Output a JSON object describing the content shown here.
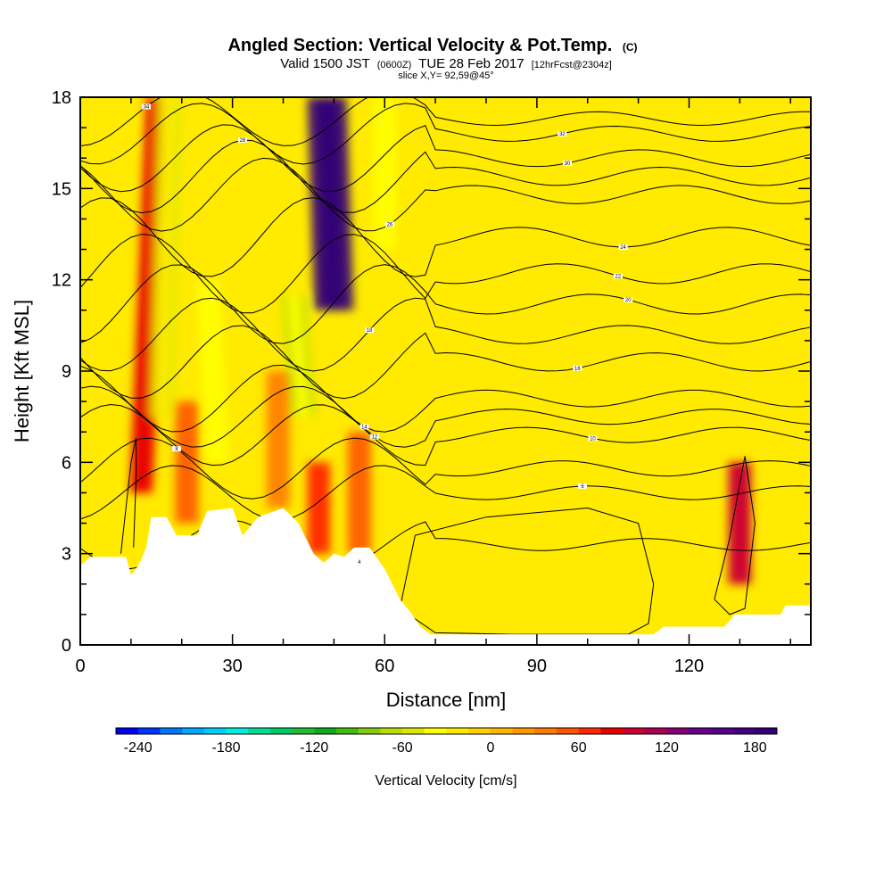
{
  "header": {
    "title": "Angled Section: Vertical Velocity & Pot.Temp.",
    "title_units": "(C)",
    "valid_prefix": "Valid 1500 JST",
    "valid_utc": "(0600Z)",
    "valid_date": "TUE 28 Feb 2017",
    "forecast": "[12hrFcst@2304z]",
    "slice": "slice X,Y= 92,59@45°"
  },
  "chart_data": {
    "type": "heatmap",
    "title": "Angled Section: Vertical Velocity & Pot.Temp.",
    "xlabel": "Distance [nm]",
    "ylabel": "Height [Kft MSL]",
    "xlim": [
      0,
      144
    ],
    "ylim": [
      0,
      18
    ],
    "x_ticks": [
      0,
      30,
      60,
      90,
      120
    ],
    "y_ticks": [
      0,
      3,
      6,
      9,
      12,
      15,
      18
    ],
    "colorbar": {
      "label": "Vertical Velocity [cm/s]",
      "min": -255,
      "max": 195,
      "step": 15,
      "tick_values": [
        -240,
        -180,
        -120,
        -60,
        0,
        60,
        120,
        180
      ],
      "tick_labels": [
        "-240",
        "-180",
        "-120",
        "-60",
        "0",
        "60",
        "120",
        "180"
      ],
      "colors": [
        "#0000f5",
        "#0033ff",
        "#0077ff",
        "#00aaff",
        "#00ccff",
        "#00eedd",
        "#00dd99",
        "#00cc66",
        "#22bb33",
        "#11aa22",
        "#44bb11",
        "#88cc11",
        "#bbdd00",
        "#dde800",
        "#ffff00",
        "#ffea00",
        "#ffd200",
        "#ffb800",
        "#ff9900",
        "#ff7a00",
        "#ff5500",
        "#ff2a00",
        "#e80000",
        "#cc0033",
        "#aa0055",
        "#880077",
        "#660088",
        "#55008f",
        "#44007f",
        "#330077"
      ]
    },
    "velocity_plumes": [
      {
        "x": 12,
        "y0": 5.0,
        "y1": 18,
        "value": 75,
        "tilt": 0.25
      },
      {
        "x": 16,
        "y0": 7.5,
        "y1": 18,
        "value": -60,
        "tilt": 0.15
      },
      {
        "x": 21,
        "y0": 4.0,
        "y1": 8,
        "value": 45,
        "tilt": 0
      },
      {
        "x": 27,
        "y0": 6.0,
        "y1": 12,
        "value": -45,
        "tilt": -0.3
      },
      {
        "x": 39,
        "y0": 4.5,
        "y1": 9,
        "value": 40,
        "tilt": 0
      },
      {
        "x": 44,
        "y0": 7.5,
        "y1": 11.5,
        "value": -75,
        "tilt": -0.5
      },
      {
        "x": 47,
        "y0": 3.0,
        "y1": 6,
        "value": 60,
        "tilt": 0
      },
      {
        "x": 50,
        "y0": 11.0,
        "y1": 18,
        "value": 180,
        "tilt": -0.2
      },
      {
        "x": 55,
        "y0": 3.0,
        "y1": 7,
        "value": 45,
        "tilt": 0
      },
      {
        "x": 60,
        "y0": 13.0,
        "y1": 18,
        "value": -45,
        "tilt": 0
      },
      {
        "x": 96,
        "y0": 14.0,
        "y1": 18,
        "value": -30,
        "tilt": 0
      },
      {
        "x": 130,
        "y0": 2.0,
        "y1": 6,
        "value": 90,
        "tilt": 0
      }
    ],
    "terrain": [
      [
        0,
        2.6
      ],
      [
        2,
        2.9
      ],
      [
        9,
        2.9
      ],
      [
        10,
        2.3
      ],
      [
        11,
        2.5
      ],
      [
        12,
        2.8
      ],
      [
        13,
        3.2
      ],
      [
        14,
        4.2
      ],
      [
        17,
        4.2
      ],
      [
        19,
        3.6
      ],
      [
        23,
        3.6
      ],
      [
        25,
        4.4
      ],
      [
        30,
        4.5
      ],
      [
        32,
        3.6
      ],
      [
        35,
        4.2
      ],
      [
        40,
        4.5
      ],
      [
        43,
        4.0
      ],
      [
        46,
        3.0
      ],
      [
        48,
        2.7
      ],
      [
        50,
        3.0
      ],
      [
        52,
        2.9
      ],
      [
        54,
        3.2
      ],
      [
        57,
        3.2
      ],
      [
        60,
        2.5
      ],
      [
        63,
        1.5
      ],
      [
        65,
        1.1
      ],
      [
        67,
        0.6
      ],
      [
        69,
        0.35
      ],
      [
        113,
        0.35
      ],
      [
        115,
        0.6
      ],
      [
        127,
        0.6
      ],
      [
        129,
        1.0
      ],
      [
        138,
        1.0
      ],
      [
        139,
        1.3
      ],
      [
        144,
        1.3
      ]
    ],
    "isentropes": [
      {
        "label": "4",
        "y": 3.3,
        "amp": 0.8,
        "x": 55
      },
      {
        "label": "6",
        "y": 5.0,
        "amp": 0.9,
        "x": 99
      },
      {
        "label": "8",
        "y": 5.8,
        "amp": 1.0,
        "x": 19
      },
      {
        "label": "10",
        "y": 6.9,
        "amp": 1.0,
        "x": 101
      },
      {
        "label": "12",
        "y": 7.5,
        "amp": 1.0,
        "x": 58
      },
      {
        "label": "14",
        "y": 8.1,
        "amp": 1.1,
        "x": 56
      },
      {
        "label": "16",
        "y": 9.3,
        "amp": 1.2,
        "x": 98
      },
      {
        "label": "18",
        "y": 10.2,
        "amp": 1.2,
        "x": 57
      },
      {
        "label": "20",
        "y": 11.2,
        "amp": 1.3,
        "x": 108
      },
      {
        "label": "22",
        "y": 12.2,
        "amp": 1.3,
        "x": 106
      },
      {
        "label": "24",
        "y": 13.4,
        "amp": 1.3,
        "x": 107
      },
      {
        "label": "26",
        "y": 14.8,
        "amp": 1.2,
        "x": 61
      },
      {
        "label": "28",
        "y": 15.4,
        "amp": 1.2,
        "x": 32
      },
      {
        "label": "30",
        "y": 16.0,
        "amp": 1.1,
        "x": 96
      },
      {
        "label": "32",
        "y": 16.8,
        "amp": 1.0,
        "x": 95
      },
      {
        "label": "34",
        "y": 17.3,
        "amp": 0.9,
        "x": 13
      }
    ],
    "zero_contours": [
      {
        "x": [
          8,
          9,
          10,
          11,
          11,
          10.5
        ],
        "y": [
          3.0,
          4.5,
          6.0,
          6.8,
          5.5,
          3.2
        ]
      },
      {
        "x": [
          63,
          66,
          80,
          100,
          110,
          113,
          112,
          108,
          100,
          85,
          70,
          63
        ],
        "y": [
          1.2,
          3.6,
          4.2,
          4.5,
          4.0,
          2.0,
          0.7,
          0.35,
          0.35,
          0.35,
          0.4,
          1.2
        ]
      },
      {
        "x": [
          125,
          128,
          131,
          133,
          131,
          128,
          125
        ],
        "y": [
          1.5,
          3.5,
          6.2,
          4.0,
          1.2,
          1.0,
          1.5
        ]
      }
    ]
  }
}
